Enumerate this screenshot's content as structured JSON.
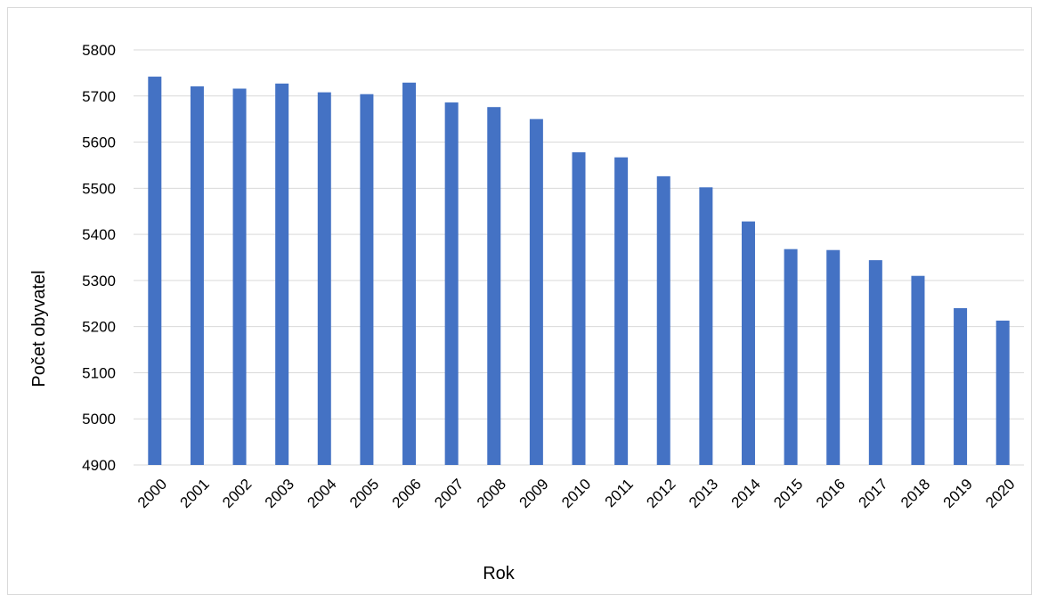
{
  "chart_data": {
    "type": "bar",
    "xlabel": "Rok",
    "ylabel": "Počet obyvatel",
    "ylim": [
      4900,
      5800
    ],
    "yticks": [
      4900,
      5000,
      5100,
      5200,
      5300,
      5400,
      5500,
      5600,
      5700,
      5800
    ],
    "categories": [
      "2000",
      "2001",
      "2002",
      "2003",
      "2004",
      "2005",
      "2006",
      "2007",
      "2008",
      "2009",
      "2010",
      "2011",
      "2012",
      "2013",
      "2014",
      "2015",
      "2016",
      "2017",
      "2018",
      "2019",
      "2020"
    ],
    "series": [
      {
        "values": [
          5742,
          5721,
          5716,
          5727,
          5708,
          5704,
          5729,
          5686,
          5676,
          5650,
          5578,
          5567,
          5526,
          5502,
          5428,
          5368,
          5366,
          5344,
          5310,
          5240,
          5213
        ]
      }
    ],
    "bar_color": "#4472c4",
    "grid_color": "#d9d9d9",
    "grid": true,
    "legend": "none"
  }
}
